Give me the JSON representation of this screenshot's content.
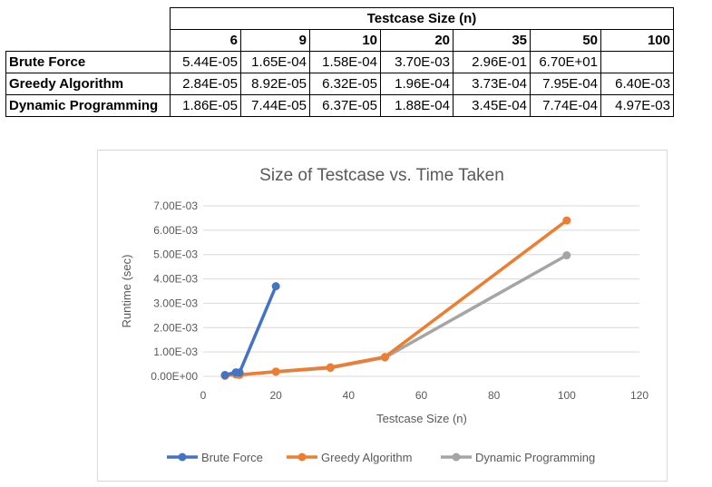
{
  "table": {
    "group_header": "Testcase Size (n)",
    "sizes": [
      "6",
      "9",
      "10",
      "20",
      "35",
      "50",
      "100"
    ],
    "rows": [
      {
        "label": "Brute Force",
        "values": [
          "5.44E-05",
          "1.65E-04",
          "1.58E-04",
          "3.70E-03",
          "2.96E-01",
          "6.70E+01",
          ""
        ]
      },
      {
        "label": "Greedy Algorithm",
        "values": [
          "2.84E-05",
          "8.92E-05",
          "6.32E-05",
          "1.96E-04",
          "3.73E-04",
          "7.95E-04",
          "6.40E-03"
        ]
      },
      {
        "label": "Dynamic Programming",
        "values": [
          "1.86E-05",
          "7.44E-05",
          "6.37E-05",
          "1.88E-04",
          "3.45E-04",
          "7.74E-04",
          "4.97E-03"
        ]
      }
    ]
  },
  "chart_data": {
    "type": "line",
    "title": "Size of Testcase vs. Time Taken",
    "xlabel": "Testcase Size (n)",
    "ylabel": "Runtime (sec)",
    "xlim": [
      0,
      120
    ],
    "ylim": [
      0,
      0.007
    ],
    "x_ticks": [
      0,
      20,
      40,
      60,
      80,
      100,
      120
    ],
    "x_tick_labels": [
      "0",
      "20",
      "40",
      "60",
      "80",
      "100",
      "120"
    ],
    "y_ticks": [
      0,
      0.001,
      0.002,
      0.003,
      0.004,
      0.005,
      0.006,
      0.007
    ],
    "y_tick_labels": [
      "0.00E+00",
      "1.00E-03",
      "2.00E-03",
      "3.00E-03",
      "4.00E-03",
      "5.00E-03",
      "6.00E-03",
      "7.00E-03"
    ],
    "grid": true,
    "legend_position": "bottom",
    "series": [
      {
        "name": "Brute Force",
        "color": "#4472c4",
        "x": [
          6,
          9,
          10,
          20
        ],
        "y": [
          5.44e-05,
          0.000165,
          0.000158,
          0.0037
        ]
      },
      {
        "name": "Greedy Algorithm",
        "color": "#ed7d31",
        "x": [
          6,
          9,
          10,
          20,
          35,
          50,
          100
        ],
        "y": [
          2.84e-05,
          8.92e-05,
          6.32e-05,
          0.000196,
          0.000373,
          0.000795,
          0.0064
        ]
      },
      {
        "name": "Dynamic Programming",
        "color": "#a5a5a5",
        "x": [
          6,
          9,
          10,
          20,
          35,
          50,
          100
        ],
        "y": [
          1.86e-05,
          7.44e-05,
          6.37e-05,
          0.000188,
          0.000345,
          0.000774,
          0.00497
        ]
      }
    ]
  }
}
